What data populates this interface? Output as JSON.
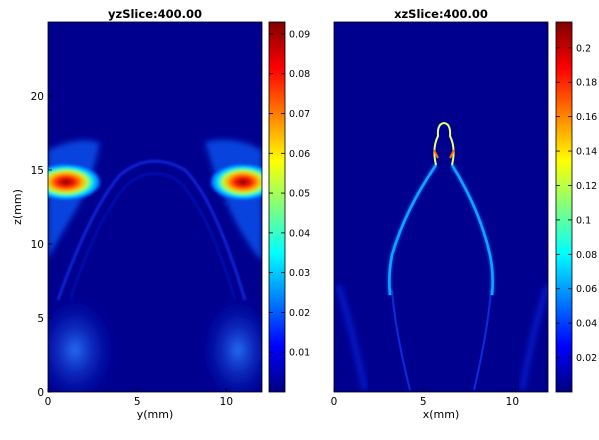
{
  "chart_data": [
    {
      "type": "heatmap",
      "title": "yzSlice:400.00",
      "xlabel": "y(mm)",
      "ylabel": "z(mm)",
      "xlim": [
        0,
        12
      ],
      "ylim": [
        0,
        25
      ],
      "xticks": [
        0,
        5,
        10
      ],
      "yticks": [
        0,
        5,
        10,
        15,
        20
      ],
      "colorbar": {
        "range": [
          0,
          0.093
        ],
        "ticks": [
          0.01,
          0.02,
          0.03,
          0.04,
          0.05,
          0.06,
          0.07,
          0.08,
          0.09
        ],
        "tick_labels": [
          "0.01",
          "0.02",
          "0.03",
          "0.04",
          "0.05",
          "0.06",
          "0.07",
          "0.08",
          "0.09"
        ],
        "colormap": "jet"
      }
    },
    {
      "type": "heatmap",
      "title": "xzSlice:400.00",
      "xlabel": "x(mm)",
      "ylabel": "",
      "xlim": [
        0,
        12
      ],
      "ylim": [
        0,
        25
      ],
      "xticks": [
        0,
        5,
        10
      ],
      "yticks": [],
      "colorbar": {
        "range": [
          0,
          0.215
        ],
        "ticks": [
          0.02,
          0.04,
          0.06,
          0.08,
          0.1,
          0.12,
          0.14,
          0.16,
          0.18,
          0.2
        ],
        "tick_labels": [
          "0.02",
          "0.04",
          "0.06",
          "0.08",
          "0.1",
          "0.12",
          "0.14",
          "0.16",
          "0.18",
          "0.2"
        ],
        "colormap": "jet"
      }
    }
  ],
  "colors": {
    "background_field": "#00008f",
    "jet_stops": [
      "#00007f",
      "#0000ff",
      "#007fff",
      "#00ffff",
      "#7fff7f",
      "#ffff00",
      "#ff7f00",
      "#ff0000",
      "#7f0000"
    ]
  }
}
